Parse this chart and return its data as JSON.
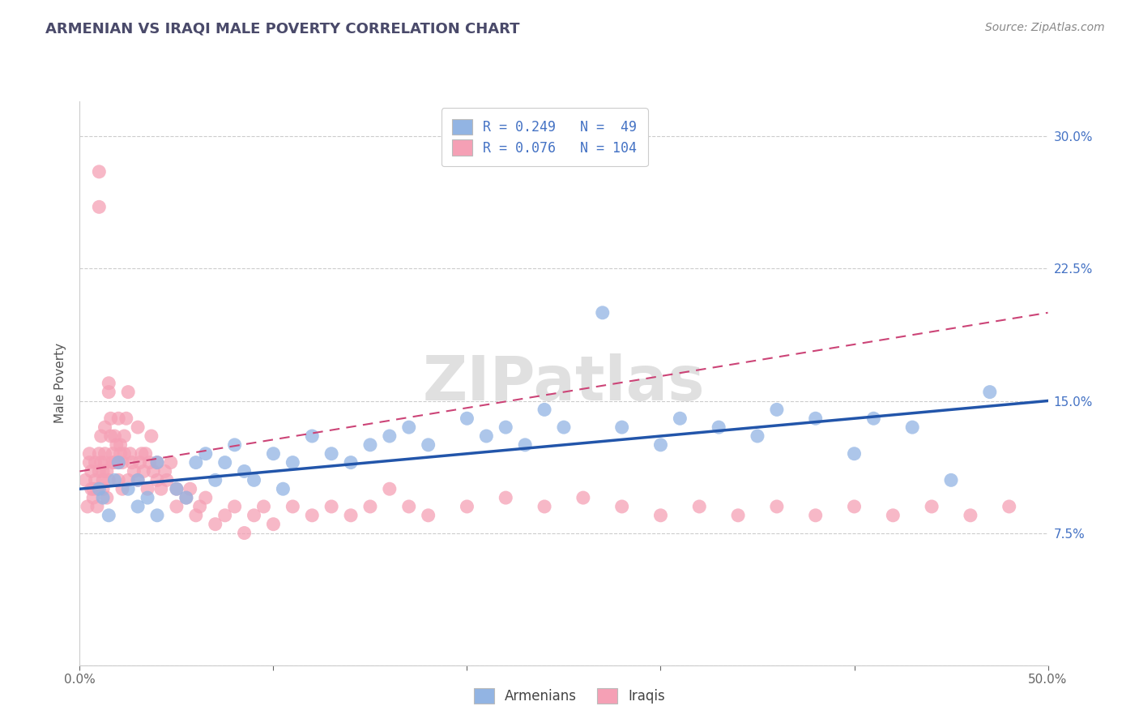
{
  "title": "ARMENIAN VS IRAQI MALE POVERTY CORRELATION CHART",
  "source": "Source: ZipAtlas.com",
  "ylabel": "Male Poverty",
  "xlim": [
    0.0,
    0.5
  ],
  "ylim": [
    0.0,
    0.32
  ],
  "xtick_positions": [
    0.0,
    0.1,
    0.2,
    0.3,
    0.4,
    0.5
  ],
  "xticklabels": [
    "0.0%",
    "",
    "",
    "",
    "",
    "50.0%"
  ],
  "ytick_positions": [
    0.0,
    0.075,
    0.15,
    0.225,
    0.3
  ],
  "ytick_labels": [
    "",
    "7.5%",
    "15.0%",
    "22.5%",
    "30.0%"
  ],
  "legend_line1": "R = 0.249   N =  49",
  "legend_line2": "R = 0.076   N = 104",
  "color_armenian": "#92b4e3",
  "color_iraqi": "#f5a0b5",
  "trend_color_armenian": "#2255aa",
  "trend_color_iraqi": "#cc4477",
  "background_color": "#ffffff",
  "grid_color": "#cccccc",
  "watermark": "ZIPatlas",
  "armenian_x": [
    0.01,
    0.012,
    0.015,
    0.018,
    0.02,
    0.025,
    0.03,
    0.03,
    0.035,
    0.04,
    0.04,
    0.05,
    0.055,
    0.06,
    0.065,
    0.07,
    0.075,
    0.08,
    0.085,
    0.09,
    0.1,
    0.105,
    0.11,
    0.12,
    0.13,
    0.14,
    0.15,
    0.16,
    0.17,
    0.18,
    0.2,
    0.21,
    0.22,
    0.23,
    0.24,
    0.25,
    0.27,
    0.28,
    0.3,
    0.31,
    0.33,
    0.35,
    0.36,
    0.38,
    0.4,
    0.41,
    0.43,
    0.45,
    0.47
  ],
  "armenian_y": [
    0.1,
    0.095,
    0.085,
    0.105,
    0.115,
    0.1,
    0.105,
    0.09,
    0.095,
    0.085,
    0.115,
    0.1,
    0.095,
    0.115,
    0.12,
    0.105,
    0.115,
    0.125,
    0.11,
    0.105,
    0.12,
    0.1,
    0.115,
    0.13,
    0.12,
    0.115,
    0.125,
    0.13,
    0.135,
    0.125,
    0.14,
    0.13,
    0.135,
    0.125,
    0.145,
    0.135,
    0.2,
    0.135,
    0.125,
    0.14,
    0.135,
    0.13,
    0.145,
    0.14,
    0.12,
    0.14,
    0.135,
    0.105,
    0.155
  ],
  "iraqi_x": [
    0.003,
    0.004,
    0.005,
    0.005,
    0.006,
    0.006,
    0.007,
    0.007,
    0.008,
    0.008,
    0.009,
    0.009,
    0.01,
    0.01,
    0.01,
    0.01,
    0.011,
    0.011,
    0.012,
    0.012,
    0.012,
    0.013,
    0.013,
    0.013,
    0.014,
    0.014,
    0.015,
    0.015,
    0.015,
    0.016,
    0.016,
    0.017,
    0.017,
    0.018,
    0.018,
    0.019,
    0.02,
    0.02,
    0.02,
    0.021,
    0.021,
    0.022,
    0.022,
    0.023,
    0.023,
    0.024,
    0.025,
    0.025,
    0.026,
    0.027,
    0.028,
    0.03,
    0.03,
    0.031,
    0.032,
    0.033,
    0.034,
    0.035,
    0.036,
    0.037,
    0.038,
    0.04,
    0.04,
    0.042,
    0.044,
    0.045,
    0.047,
    0.05,
    0.05,
    0.055,
    0.057,
    0.06,
    0.062,
    0.065,
    0.07,
    0.075,
    0.08,
    0.085,
    0.09,
    0.095,
    0.1,
    0.11,
    0.12,
    0.13,
    0.14,
    0.15,
    0.16,
    0.17,
    0.18,
    0.2,
    0.22,
    0.24,
    0.26,
    0.28,
    0.3,
    0.32,
    0.34,
    0.36,
    0.38,
    0.4,
    0.42,
    0.44,
    0.46,
    0.48
  ],
  "iraqi_y": [
    0.105,
    0.09,
    0.12,
    0.115,
    0.1,
    0.11,
    0.095,
    0.1,
    0.105,
    0.115,
    0.1,
    0.09,
    0.28,
    0.26,
    0.12,
    0.11,
    0.115,
    0.13,
    0.1,
    0.105,
    0.11,
    0.115,
    0.12,
    0.135,
    0.11,
    0.095,
    0.16,
    0.155,
    0.105,
    0.13,
    0.14,
    0.115,
    0.12,
    0.115,
    0.13,
    0.125,
    0.115,
    0.105,
    0.14,
    0.12,
    0.125,
    0.1,
    0.115,
    0.13,
    0.12,
    0.14,
    0.105,
    0.155,
    0.12,
    0.115,
    0.11,
    0.105,
    0.135,
    0.115,
    0.12,
    0.11,
    0.12,
    0.1,
    0.115,
    0.13,
    0.11,
    0.105,
    0.115,
    0.1,
    0.11,
    0.105,
    0.115,
    0.09,
    0.1,
    0.095,
    0.1,
    0.085,
    0.09,
    0.095,
    0.08,
    0.085,
    0.09,
    0.075,
    0.085,
    0.09,
    0.08,
    0.09,
    0.085,
    0.09,
    0.085,
    0.09,
    0.1,
    0.09,
    0.085,
    0.09,
    0.095,
    0.09,
    0.095,
    0.09,
    0.085,
    0.09,
    0.085,
    0.09,
    0.085,
    0.09,
    0.085,
    0.09,
    0.085,
    0.09
  ]
}
